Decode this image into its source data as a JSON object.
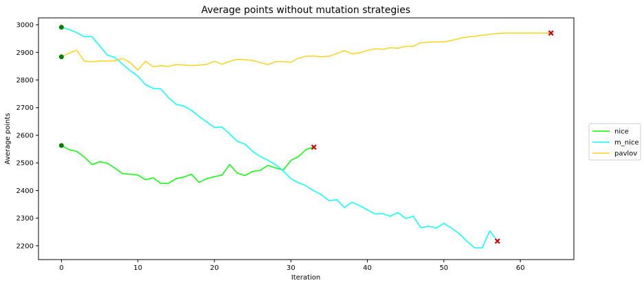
{
  "chart_data": {
    "type": "line",
    "title": "Average points without mutation strategies",
    "xlabel": "Iteration",
    "ylabel": "Average points",
    "xlim": [
      -3,
      67
    ],
    "ylim": [
      2150,
      3025
    ],
    "xticks": [
      0,
      10,
      20,
      30,
      40,
      50,
      60
    ],
    "yticks": [
      2200,
      2300,
      2400,
      2500,
      2600,
      2700,
      2800,
      2900,
      3000
    ],
    "grid": false,
    "legend_position": "center-right-outside",
    "start_marker_color": "#008000",
    "end_marker_color": "#cc0000",
    "series": [
      {
        "name": "nice",
        "color": "#00ff00",
        "values": [
          2563,
          2548,
          2542,
          2521,
          2494,
          2504,
          2499,
          2481,
          2461,
          2459,
          2456,
          2439,
          2446,
          2426,
          2426,
          2443,
          2449,
          2459,
          2429,
          2443,
          2450,
          2456,
          2494,
          2463,
          2454,
          2469,
          2473,
          2491,
          2482,
          2474,
          2509,
          2523,
          2549,
          2557
        ]
      },
      {
        "name": "m_nice",
        "color": "#00ffff",
        "values": [
          2991,
          2983,
          2971,
          2957,
          2957,
          2924,
          2890,
          2882,
          2857,
          2834,
          2814,
          2783,
          2770,
          2768,
          2736,
          2712,
          2706,
          2690,
          2668,
          2648,
          2628,
          2630,
          2605,
          2578,
          2568,
          2542,
          2523,
          2510,
          2493,
          2471,
          2443,
          2428,
          2417,
          2399,
          2385,
          2363,
          2367,
          2338,
          2358,
          2345,
          2330,
          2315,
          2316,
          2307,
          2320,
          2299,
          2307,
          2265,
          2271,
          2264,
          2281,
          2264,
          2244,
          2217,
          2193,
          2192,
          2254,
          2217
        ]
      },
      {
        "name": "pavlov",
        "color": "#ffd11a",
        "values": [
          2884,
          2897,
          2908,
          2868,
          2866,
          2869,
          2868,
          2870,
          2878,
          2863,
          2836,
          2868,
          2848,
          2852,
          2849,
          2856,
          2854,
          2852,
          2854,
          2857,
          2868,
          2857,
          2868,
          2875,
          2873,
          2871,
          2863,
          2856,
          2866,
          2867,
          2864,
          2879,
          2886,
          2887,
          2884,
          2886,
          2896,
          2906,
          2895,
          2898,
          2907,
          2913,
          2911,
          2917,
          2915,
          2922,
          2922,
          2935,
          2937,
          2938,
          2938,
          2943,
          2950,
          2956,
          2958,
          2962,
          2965,
          2969,
          2970,
          2970,
          2970,
          2970,
          2970,
          2970,
          2970
        ]
      }
    ]
  }
}
